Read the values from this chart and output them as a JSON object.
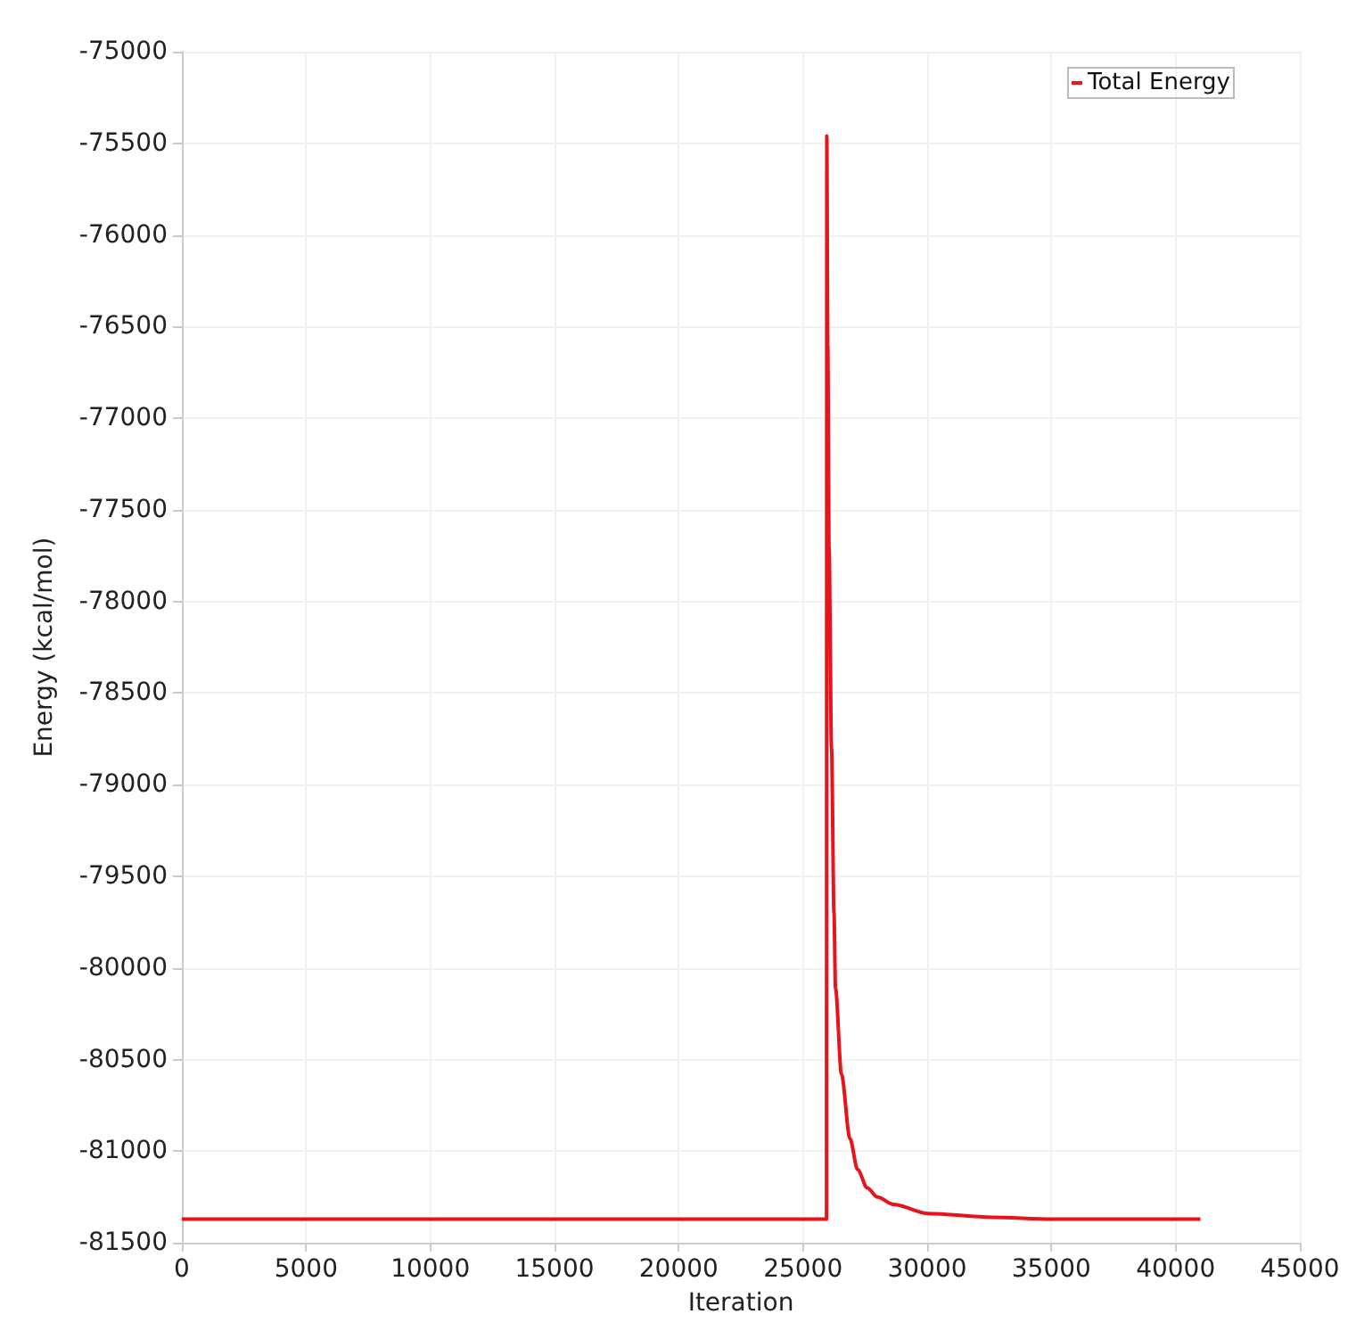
{
  "chart_data": {
    "type": "line",
    "xlabel": "Iteration",
    "ylabel": "Energy (kcal/mol)",
    "series": [
      {
        "name": "Total Energy",
        "color": "#e8141b",
        "x": [
          0,
          10000,
          20000,
          25950,
          25960,
          26000,
          26050,
          26150,
          26250,
          26310,
          26550,
          26890,
          27200,
          27590,
          28000,
          28640,
          30040,
          32610,
          35000,
          41000
        ],
        "values": [
          -81370,
          -81370,
          -81370,
          -81370,
          -75460,
          -76600,
          -77700,
          -78800,
          -79700,
          -80110,
          -80580,
          -80930,
          -81100,
          -81200,
          -81250,
          -81290,
          -81340,
          -81360,
          -81370,
          -81370
        ]
      }
    ],
    "xlim": [
      0,
      45000
    ],
    "xticks": [
      0,
      5000,
      10000,
      15000,
      20000,
      25000,
      30000,
      35000,
      40000,
      45000
    ],
    "ylim": [
      -81500,
      -75000
    ],
    "yticks": [
      -81500,
      -81000,
      -80500,
      -80000,
      -79500,
      -79000,
      -78500,
      -78000,
      -77500,
      -77000,
      -76500,
      -76000,
      -75500,
      -75000
    ],
    "grid": true,
    "legend": "top right",
    "marker": "none",
    "line_style": "solid"
  }
}
